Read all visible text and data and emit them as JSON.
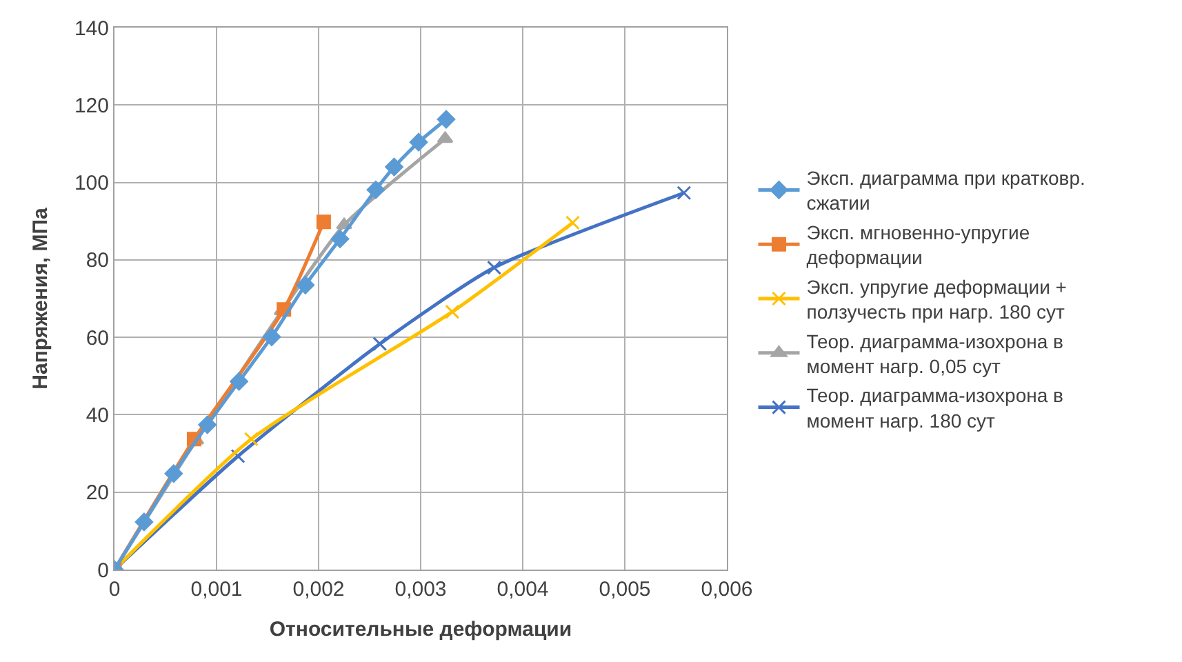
{
  "chart_data": {
    "type": "line",
    "xlabel": "Относительные деформации",
    "ylabel": "Напряжения, МПа",
    "xlim": [
      0,
      0.006
    ],
    "ylim": [
      0,
      140
    ],
    "xticks": [
      0,
      {
        "value": 0.001,
        "label": "0,001"
      },
      {
        "value": 0.002,
        "label": "0,002"
      },
      {
        "value": 0.003,
        "label": "0,003"
      },
      {
        "value": 0.004,
        "label": "0,004"
      },
      {
        "value": 0.005,
        "label": "0,005"
      },
      {
        "value": 0.006,
        "label": "0,006"
      }
    ],
    "yticks": [
      0,
      20,
      40,
      60,
      80,
      100,
      120,
      140
    ],
    "grid": true,
    "legend": "right",
    "line_style": "solid",
    "series": [
      {
        "name": "Эксп. диаграмма при кратковр. сжатии",
        "color": "#5b9bd5",
        "marker": "diamond",
        "x": [
          0,
          0.00029,
          0.00058,
          0.00091,
          0.00122,
          0.00154,
          0.00187,
          0.00221,
          0.00256,
          0.00274,
          0.00298,
          0.00325
        ],
        "values": [
          0,
          12.3,
          24.8,
          37.4,
          48.6,
          60.1,
          73.5,
          85.4,
          98.1,
          104,
          110.4,
          116.3
        ]
      },
      {
        "name": "Эксп. мгновенно-упругие деформации",
        "color": "#ed7d31",
        "marker": "square",
        "x": [
          0,
          0.00078,
          0.00166,
          0.00205
        ],
        "values": [
          0,
          33.7,
          67.2,
          89.8
        ]
      },
      {
        "name": "Эксп. упругие деформации + ползучесть при нагр. 180 сут",
        "color": "#ffc000",
        "marker": "cross",
        "x": [
          0,
          0.00134,
          0.00331,
          0.00449
        ],
        "values": [
          0,
          33.7,
          66.6,
          89.6
        ]
      },
      {
        "name": "Теор. диаграмма-изохрона в момент нагр. 0,05 сут",
        "color": "#a5a5a5",
        "marker": "triangle",
        "x": [
          0,
          0.0008,
          0.00164,
          0.00225,
          0.00324
        ],
        "values": [
          0,
          33.4,
          66.8,
          89,
          111.3
        ]
      },
      {
        "name": "Теор. диаграмма-изохрона в момент нагр. 180 сут",
        "color": "#4472c4",
        "marker": "cross",
        "x": [
          0,
          0.00121,
          0.0026,
          0.00372,
          0.00558
        ],
        "values": [
          0,
          29.3,
          58.3,
          78,
          97.3
        ]
      }
    ]
  }
}
